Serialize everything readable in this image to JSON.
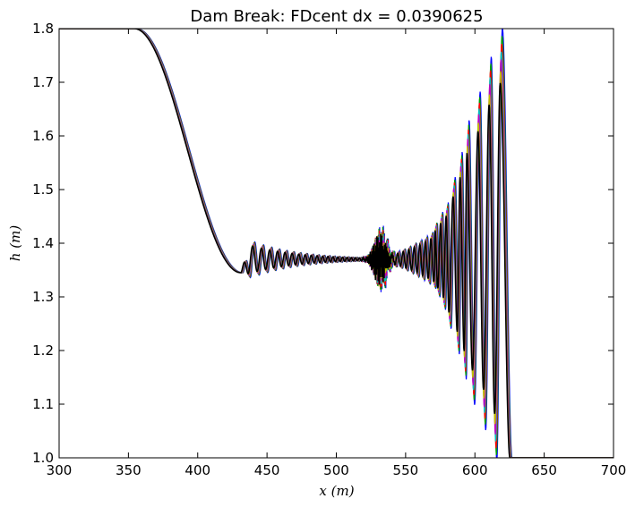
{
  "chart_data": {
    "type": "line",
    "title": "Dam Break: FDcent dx = 0.0390625",
    "xlabel": "x (m)",
    "ylabel": "h (m)",
    "xlim": [
      300,
      700
    ],
    "ylim": [
      1.0,
      1.8
    ],
    "xticks": [
      300,
      350,
      400,
      450,
      500,
      550,
      600,
      650,
      700
    ],
    "yticks": [
      1.0,
      1.1,
      1.2,
      1.3,
      1.4,
      1.5,
      1.6,
      1.7,
      1.8
    ],
    "grid": false,
    "legend": "none",
    "series": [
      {
        "color": "#0000ff",
        "x_offset": -0.8,
        "amplitude_scale": 1.18
      },
      {
        "color": "#00a000",
        "x_offset": -0.5,
        "amplitude_scale": 1.14
      },
      {
        "color": "#ff0000",
        "x_offset": -0.25,
        "amplitude_scale": 1.1
      },
      {
        "color": "#00bfbf",
        "x_offset": 0.0,
        "amplitude_scale": 1.06
      },
      {
        "color": "#bf00bf",
        "x_offset": 0.25,
        "amplitude_scale": 1.02
      },
      {
        "color": "#bfbf00",
        "x_offset": 0.5,
        "amplitude_scale": 0.96
      },
      {
        "color": "#000000",
        "x_offset": 0.75,
        "amplitude_scale": 0.9
      }
    ],
    "profile": {
      "upstream_level": 1.8,
      "downstream_level": 1.0,
      "plateau_level": 1.37,
      "rarefaction_start_x": 355,
      "trough": {
        "x": 432,
        "h": 1.345
      },
      "oscillation_zone": [
        433,
        585
      ],
      "dispersive_noise_center_x": 532,
      "crest_peaks": [
        {
          "x": 572,
          "h": 1.43
        },
        {
          "x": 576,
          "h": 1.445
        },
        {
          "x": 580,
          "h": 1.46
        },
        {
          "x": 585,
          "h": 1.5
        },
        {
          "x": 590,
          "h": 1.54
        },
        {
          "x": 595,
          "h": 1.59
        },
        {
          "x": 603,
          "h": 1.635
        },
        {
          "x": 611,
          "h": 1.69
        },
        {
          "x": 619,
          "h": 1.735
        }
      ],
      "trough_depths": [
        {
          "x": 574,
          "h": 1.31
        },
        {
          "x": 578,
          "h": 1.29
        },
        {
          "x": 582,
          "h": 1.26
        },
        {
          "x": 588,
          "h": 1.22
        },
        {
          "x": 593,
          "h": 1.18
        },
        {
          "x": 599,
          "h": 1.14
        },
        {
          "x": 607,
          "h": 1.1
        },
        {
          "x": 615,
          "h": 1.05
        }
      ],
      "front_x": 626
    }
  }
}
